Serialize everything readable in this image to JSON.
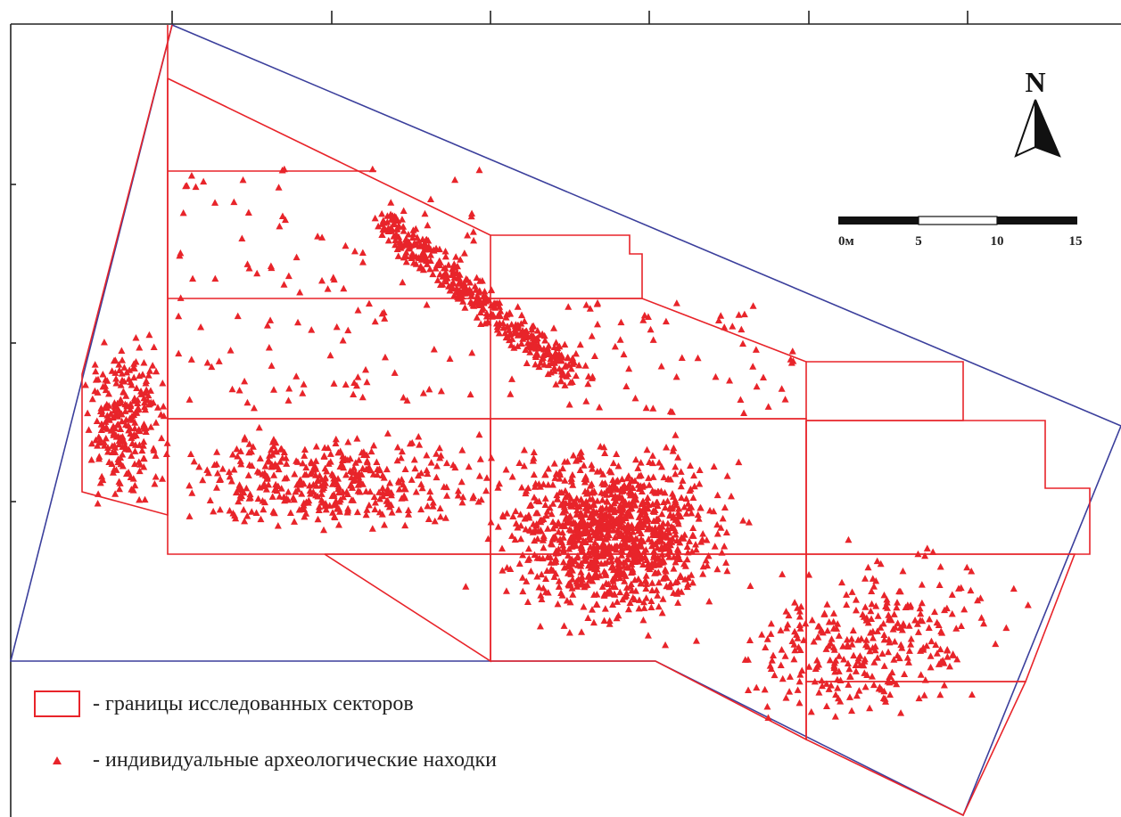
{
  "map": {
    "north_label": "N",
    "scale_labels": [
      "0м",
      "5",
      "10",
      "15"
    ],
    "colors": {
      "sector_border": "#e8242a",
      "site_boundary": "#3b3f9c",
      "finds": "#e8242a"
    },
    "find_density": [
      {
        "zone": "west-edge-cluster",
        "level": "medium"
      },
      {
        "zone": "central-west-band",
        "level": "high"
      },
      {
        "zone": "northern-diagonal-streak",
        "level": "high"
      },
      {
        "zone": "central-core",
        "level": "very-high"
      },
      {
        "zone": "southeast-spread",
        "level": "medium"
      },
      {
        "zone": "eastern-sector",
        "level": "low"
      }
    ]
  },
  "legend": {
    "sectors_label": "- границы исследованных секторов",
    "finds_label": "- индивидуальные археологические находки"
  }
}
